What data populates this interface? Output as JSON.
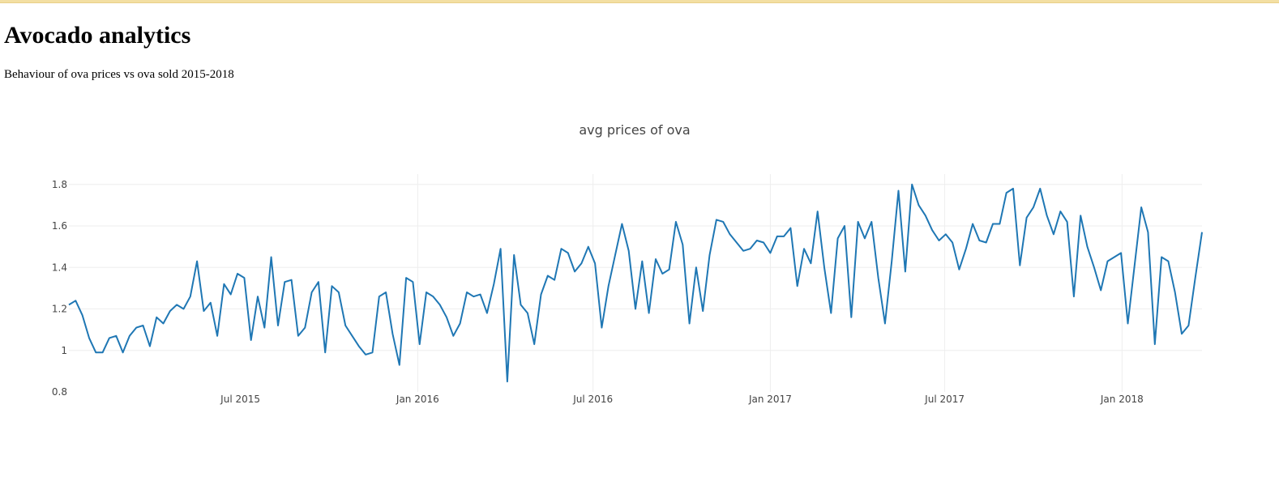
{
  "page": {
    "title": "Avocado analytics",
    "subtitle": "Behaviour of ova prices vs ova sold 2015-2018"
  },
  "chart_data": {
    "type": "line",
    "title": "avg prices of ova",
    "xlabel": "",
    "ylabel": "",
    "line_color": "#1f77b4",
    "grid": true,
    "xlim": [
      "2015-01-04",
      "2018-03-25"
    ],
    "ylim": [
      0.8,
      1.85
    ],
    "y_ticks": [
      0.8,
      1.0,
      1.2,
      1.4,
      1.6,
      1.8
    ],
    "y_tick_labels": [
      "0.8",
      "1",
      "1.2",
      "1.4",
      "1.6",
      "1.8"
    ],
    "x_ticks": [
      {
        "date": "2015-07-01",
        "label": "Jul 2015"
      },
      {
        "date": "2016-01-01",
        "label": "Jan 2016"
      },
      {
        "date": "2016-07-01",
        "label": "Jul 2016"
      },
      {
        "date": "2017-01-01",
        "label": "Jan 2017"
      },
      {
        "date": "2017-07-01",
        "label": "Jul 2017"
      },
      {
        "date": "2018-01-01",
        "label": "Jan 2018"
      }
    ],
    "x_grid_dates": [
      "2016-01-01",
      "2016-07-01",
      "2017-01-01",
      "2017-07-01",
      "2018-01-01"
    ],
    "series": [
      {
        "x": [
          "2015-01-04",
          "2015-01-11",
          "2015-01-18",
          "2015-01-25",
          "2015-02-01",
          "2015-02-08",
          "2015-02-15",
          "2015-02-22",
          "2015-03-01",
          "2015-03-08",
          "2015-03-15",
          "2015-03-22",
          "2015-03-29",
          "2015-04-05",
          "2015-04-12",
          "2015-04-19",
          "2015-04-26",
          "2015-05-03",
          "2015-05-10",
          "2015-05-17",
          "2015-05-24",
          "2015-05-31",
          "2015-06-07",
          "2015-06-14",
          "2015-06-21",
          "2015-06-28",
          "2015-07-05",
          "2015-07-12",
          "2015-07-19",
          "2015-07-26",
          "2015-08-02",
          "2015-08-09",
          "2015-08-16",
          "2015-08-23",
          "2015-08-30",
          "2015-09-06",
          "2015-09-13",
          "2015-09-20",
          "2015-09-27",
          "2015-10-04",
          "2015-10-11",
          "2015-10-18",
          "2015-10-25",
          "2015-11-01",
          "2015-11-08",
          "2015-11-15",
          "2015-11-22",
          "2015-11-29",
          "2015-12-06",
          "2015-12-13",
          "2015-12-20",
          "2015-12-27",
          "2016-01-03",
          "2016-01-10",
          "2016-01-17",
          "2016-01-24",
          "2016-01-31",
          "2016-02-07",
          "2016-02-14",
          "2016-02-21",
          "2016-02-28",
          "2016-03-06",
          "2016-03-13",
          "2016-03-20",
          "2016-03-27",
          "2016-04-03",
          "2016-04-10",
          "2016-04-17",
          "2016-04-24",
          "2016-05-01",
          "2016-05-08",
          "2016-05-15",
          "2016-05-22",
          "2016-05-29",
          "2016-06-05",
          "2016-06-12",
          "2016-06-19",
          "2016-06-26",
          "2016-07-03",
          "2016-07-10",
          "2016-07-17",
          "2016-07-24",
          "2016-07-31",
          "2016-08-07",
          "2016-08-14",
          "2016-08-21",
          "2016-08-28",
          "2016-09-04",
          "2016-09-11",
          "2016-09-18",
          "2016-09-25",
          "2016-10-02",
          "2016-10-09",
          "2016-10-16",
          "2016-10-23",
          "2016-10-30",
          "2016-11-06",
          "2016-11-13",
          "2016-11-20",
          "2016-11-27",
          "2016-12-04",
          "2016-12-11",
          "2016-12-18",
          "2016-12-25",
          "2017-01-01",
          "2017-01-08",
          "2017-01-15",
          "2017-01-22",
          "2017-01-29",
          "2017-02-05",
          "2017-02-12",
          "2017-02-19",
          "2017-02-26",
          "2017-03-05",
          "2017-03-12",
          "2017-03-19",
          "2017-03-26",
          "2017-04-02",
          "2017-04-09",
          "2017-04-16",
          "2017-04-23",
          "2017-04-30",
          "2017-05-07",
          "2017-05-14",
          "2017-05-21",
          "2017-05-28",
          "2017-06-04",
          "2017-06-11",
          "2017-06-18",
          "2017-06-25",
          "2017-07-02",
          "2017-07-09",
          "2017-07-16",
          "2017-07-23",
          "2017-07-30",
          "2017-08-06",
          "2017-08-13",
          "2017-08-20",
          "2017-08-27",
          "2017-09-03",
          "2017-09-10",
          "2017-09-17",
          "2017-09-24",
          "2017-10-01",
          "2017-10-08",
          "2017-10-15",
          "2017-10-22",
          "2017-10-29",
          "2017-11-05",
          "2017-11-12",
          "2017-11-19",
          "2017-11-26",
          "2017-12-03",
          "2017-12-10",
          "2017-12-17",
          "2017-12-24",
          "2017-12-31",
          "2018-01-07",
          "2018-01-14",
          "2018-01-21",
          "2018-01-28",
          "2018-02-04",
          "2018-02-11",
          "2018-02-18",
          "2018-02-25",
          "2018-03-04",
          "2018-03-11",
          "2018-03-18",
          "2018-03-25"
        ],
        "y": [
          1.22,
          1.24,
          1.17,
          1.06,
          0.99,
          0.99,
          1.06,
          1.07,
          0.99,
          1.07,
          1.11,
          1.12,
          1.02,
          1.16,
          1.13,
          1.19,
          1.22,
          1.2,
          1.26,
          1.43,
          1.19,
          1.23,
          1.07,
          1.32,
          1.27,
          1.37,
          1.35,
          1.05,
          1.26,
          1.11,
          1.45,
          1.12,
          1.33,
          1.34,
          1.07,
          1.11,
          1.28,
          1.33,
          0.99,
          1.31,
          1.28,
          1.12,
          1.07,
          1.02,
          0.98,
          0.99,
          1.26,
          1.28,
          1.08,
          0.93,
          1.35,
          1.33,
          1.03,
          1.28,
          1.26,
          1.22,
          1.16,
          1.07,
          1.13,
          1.28,
          1.26,
          1.27,
          1.18,
          1.32,
          1.49,
          0.85,
          1.46,
          1.22,
          1.18,
          1.03,
          1.27,
          1.36,
          1.34,
          1.49,
          1.47,
          1.38,
          1.42,
          1.5,
          1.42,
          1.11,
          1.31,
          1.46,
          1.61,
          1.48,
          1.2,
          1.43,
          1.18,
          1.44,
          1.37,
          1.39,
          1.62,
          1.51,
          1.13,
          1.4,
          1.19,
          1.46,
          1.63,
          1.62,
          1.56,
          1.52,
          1.48,
          1.49,
          1.53,
          1.52,
          1.47,
          1.55,
          1.55,
          1.59,
          1.31,
          1.49,
          1.42,
          1.67,
          1.4,
          1.18,
          1.54,
          1.6,
          1.16,
          1.62,
          1.54,
          1.62,
          1.35,
          1.13,
          1.43,
          1.77,
          1.38,
          1.8,
          1.7,
          1.65,
          1.58,
          1.53,
          1.56,
          1.52,
          1.39,
          1.49,
          1.61,
          1.53,
          1.52,
          1.61,
          1.61,
          1.76,
          1.78,
          1.41,
          1.64,
          1.69,
          1.78,
          1.65,
          1.56,
          1.67,
          1.62,
          1.26,
          1.65,
          1.5,
          1.4,
          1.29,
          1.43,
          1.45,
          1.47,
          1.13,
          1.41,
          1.69,
          1.57,
          1.03,
          1.45,
          1.43,
          1.28,
          1.08,
          1.12,
          1.35,
          1.57
        ]
      }
    ]
  }
}
